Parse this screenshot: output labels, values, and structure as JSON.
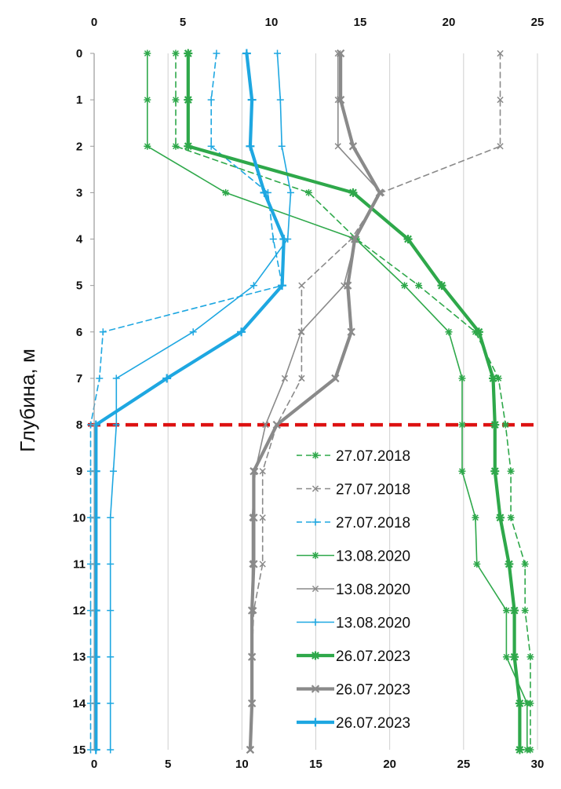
{
  "chart_data": {
    "type": "line",
    "ylabel": "Глубина, м",
    "y_axis": {
      "range": [
        0,
        15
      ],
      "inverted": true,
      "ticks": [
        0,
        1,
        2,
        3,
        4,
        5,
        6,
        7,
        8,
        9,
        10,
        11,
        12,
        13,
        14,
        15
      ]
    },
    "x_axis_bottom": {
      "range": [
        0,
        30
      ],
      "ticks": [
        0,
        5,
        10,
        15,
        20,
        25,
        30
      ]
    },
    "x_axis_top": {
      "range": [
        0,
        25
      ],
      "ticks": [
        0,
        5,
        10,
        15,
        20,
        25
      ]
    },
    "grid": "vertical",
    "reference_line": {
      "depth": 8,
      "color": "#dd1111",
      "style": "dashed"
    },
    "legend_position": "bottom-right",
    "series": [
      {
        "name": "27.07.2018",
        "color": "#2ea84a",
        "dash": true,
        "width": 1.6,
        "marker": "star",
        "axis": "top",
        "x": [
          4.6,
          4.6,
          4.6,
          12.1,
          14.8,
          18.3,
          21.5,
          22.8,
          23.2,
          23.5,
          23.5,
          24.3,
          24.3,
          24.6,
          24.6,
          24.6
        ],
        "y": [
          0,
          1,
          2,
          3,
          4,
          5,
          6,
          7,
          8,
          9,
          10,
          11,
          12,
          13,
          14,
          15
        ]
      },
      {
        "name": "27.07.2018",
        "color": "#8a8a8a",
        "dash": true,
        "width": 1.6,
        "marker": "x",
        "axis": "top",
        "x": [
          22.9,
          22.9,
          22.9,
          16.2,
          14.5,
          11.7,
          11.7,
          11.7,
          10.3,
          9.5,
          9.5,
          9.5,
          9.0,
          8.9,
          8.9,
          8.8
        ],
        "y": [
          0,
          1,
          2,
          3,
          4,
          5,
          6,
          7,
          8,
          9,
          10,
          11,
          12,
          13,
          14,
          15
        ]
      },
      {
        "name": "27.07.2018",
        "color": "#1ea7e1",
        "dash": true,
        "width": 1.6,
        "marker": "plus",
        "axis": "top",
        "x": [
          6.9,
          6.6,
          6.6,
          9.8,
          10.1,
          10.6,
          0.5,
          0.3,
          -0.2,
          -0.2,
          -0.2,
          -0.2,
          -0.2,
          -0.2,
          -0.2,
          -0.2
        ],
        "y": [
          0,
          1,
          2,
          3,
          4,
          5,
          6,
          7,
          8,
          9,
          10,
          11,
          12,
          13,
          14,
          15
        ]
      },
      {
        "name": "13.08.2020",
        "color": "#2ea84a",
        "dash": false,
        "width": 1.6,
        "marker": "star",
        "axis": "bottom",
        "x": [
          3.6,
          3.6,
          3.6,
          8.9,
          17.7,
          21.0,
          24.0,
          24.9,
          24.9,
          24.9,
          25.8,
          25.9,
          27.9,
          27.9,
          29.3,
          29.3
        ],
        "y": [
          0,
          1,
          2,
          3,
          4,
          5,
          6,
          7,
          8,
          9,
          10,
          11,
          12,
          13,
          14,
          15
        ]
      },
      {
        "name": "13.08.2020",
        "color": "#8a8a8a",
        "dash": false,
        "width": 1.6,
        "marker": "x",
        "axis": "bottom",
        "x": [
          16.5,
          16.5,
          16.5,
          19.4,
          17.7,
          16.9,
          14.0,
          12.9,
          11.6,
          10.9,
          10.7,
          10.7,
          10.7,
          10.7,
          10.7,
          10.6
        ],
        "y": [
          0,
          1,
          2,
          3,
          4,
          5,
          6,
          7,
          8,
          9,
          10,
          11,
          12,
          13,
          14,
          15
        ]
      },
      {
        "name": "13.08.2020",
        "color": "#1ea7e1",
        "dash": false,
        "width": 1.6,
        "marker": "plus",
        "axis": "bottom",
        "x": [
          12.4,
          12.6,
          12.7,
          13.3,
          13.1,
          10.8,
          6.7,
          1.5,
          1.5,
          1.3,
          1.1,
          1.1,
          1.1,
          1.1,
          1.1,
          1.1
        ],
        "y": [
          0,
          1,
          2,
          3,
          4,
          5,
          6,
          7,
          8,
          9,
          10,
          11,
          12,
          13,
          14,
          15
        ]
      },
      {
        "name": "26.07.2023",
        "color": "#2ea84a",
        "dash": false,
        "width": 4.2,
        "marker": "star",
        "axis": "top",
        "x": [
          5.3,
          5.3,
          5.3,
          14.6,
          17.7,
          19.6,
          21.7,
          22.5,
          22.6,
          22.6,
          22.9,
          23.4,
          23.7,
          23.7,
          24.0,
          24.0
        ],
        "y": [
          0,
          1,
          2,
          3,
          4,
          5,
          6,
          7,
          8,
          9,
          10,
          11,
          12,
          13,
          14,
          15
        ]
      },
      {
        "name": "26.07.2023",
        "color": "#8a8a8a",
        "dash": false,
        "width": 4.2,
        "marker": "x",
        "axis": "top",
        "x": [
          13.9,
          13.9,
          14.6,
          16.1,
          14.7,
          14.3,
          14.5,
          13.6,
          10.3,
          9.0,
          9.0,
          9.0,
          8.9,
          8.9,
          8.9,
          8.8
        ],
        "y": [
          0,
          1,
          2,
          3,
          4,
          5,
          6,
          7,
          8,
          9,
          10,
          11,
          12,
          13,
          14,
          15
        ]
      },
      {
        "name": "26.07.2023",
        "color": "#1ea7e1",
        "dash": false,
        "width": 4.2,
        "marker": "plus",
        "axis": "top",
        "x": [
          8.6,
          8.9,
          8.8,
          9.6,
          10.7,
          10.6,
          8.3,
          4.1,
          0.1,
          0.1,
          0.1,
          0.1,
          0.1,
          0.1,
          0.1,
          0.1
        ],
        "y": [
          0,
          1,
          2,
          3,
          4,
          5,
          6,
          7,
          8,
          9,
          10,
          11,
          12,
          13,
          14,
          15
        ]
      }
    ]
  }
}
